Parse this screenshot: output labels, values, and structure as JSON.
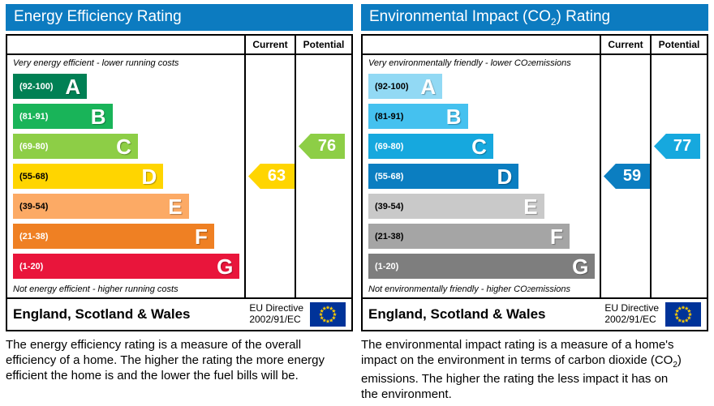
{
  "eu_flag": {
    "background": "#003399",
    "star_color": "#ffcc00"
  },
  "chart_data": [
    {
      "type": "bar",
      "title": {
        "pre": "Energy Efficiency Rating",
        "sub": "",
        "post": ""
      },
      "header_color": "#0c7bc0",
      "columns": {
        "current": "Current",
        "potential": "Potential"
      },
      "top_note": {
        "pre": "Very energy efficient - lower running costs",
        "sub": "",
        "post": ""
      },
      "bottom_note": {
        "pre": "Not energy efficient - higher running costs",
        "sub": "",
        "post": ""
      },
      "bands": [
        {
          "range": "(92-100)",
          "letter": "A",
          "color": "#008054",
          "text_color": "#ffffff",
          "width": "32%"
        },
        {
          "range": "(81-91)",
          "letter": "B",
          "color": "#19b459",
          "text_color": "#ffffff",
          "width": "43%"
        },
        {
          "range": "(69-80)",
          "letter": "C",
          "color": "#8dce46",
          "text_color": "#ffffff",
          "width": "54%"
        },
        {
          "range": "(55-68)",
          "letter": "D",
          "color": "#ffd500",
          "text_color": "#000000",
          "width": "65%"
        },
        {
          "range": "(39-54)",
          "letter": "E",
          "color": "#fcaa65",
          "text_color": "#000000",
          "width": "76%"
        },
        {
          "range": "(21-38)",
          "letter": "F",
          "color": "#ef8023",
          "text_color": "#ffffff",
          "width": "87%"
        },
        {
          "range": "(1-20)",
          "letter": "G",
          "color": "#e9153b",
          "text_color": "#ffffff",
          "width": "98%"
        }
      ],
      "current": {
        "value": "63",
        "band_index": 3,
        "color": "#ffd500"
      },
      "potential": {
        "value": "76",
        "band_index": 2,
        "color": "#8dce46"
      },
      "footer": {
        "region": "England, Scotland & Wales",
        "directive_line1": "EU Directive",
        "directive_line2": "2002/91/EC"
      },
      "description": {
        "pre": "The energy efficiency rating is a measure of the overall efficiency of a home. The higher the rating the more energy efficient the home is and the lower the fuel bills will be.",
        "sub": "",
        "post": ""
      }
    },
    {
      "type": "bar",
      "title": {
        "pre": "Environmental Impact (CO",
        "sub": "2",
        "post": ") Rating"
      },
      "header_color": "#0c7bc0",
      "columns": {
        "current": "Current",
        "potential": "Potential"
      },
      "top_note": {
        "pre": "Very environmentally friendly - lower CO",
        "sub": "2",
        "post": " emissions"
      },
      "bottom_note": {
        "pre": "Not environmentally friendly - higher CO",
        "sub": "2",
        "post": " emissions"
      },
      "bands": [
        {
          "range": "(92-100)",
          "letter": "A",
          "color": "#92d9f4",
          "text_color": "#000000",
          "width": "32%"
        },
        {
          "range": "(81-91)",
          "letter": "B",
          "color": "#45c1ef",
          "text_color": "#000000",
          "width": "43%"
        },
        {
          "range": "(69-80)",
          "letter": "C",
          "color": "#16a8de",
          "text_color": "#ffffff",
          "width": "54%"
        },
        {
          "range": "(55-68)",
          "letter": "D",
          "color": "#0b7ec1",
          "text_color": "#ffffff",
          "width": "65%"
        },
        {
          "range": "(39-54)",
          "letter": "E",
          "color": "#c9c9c9",
          "text_color": "#000000",
          "width": "76%"
        },
        {
          "range": "(21-38)",
          "letter": "F",
          "color": "#a5a5a5",
          "text_color": "#000000",
          "width": "87%"
        },
        {
          "range": "(1-20)",
          "letter": "G",
          "color": "#7e7e7e",
          "text_color": "#ffffff",
          "width": "98%"
        }
      ],
      "current": {
        "value": "59",
        "band_index": 3,
        "color": "#0b7ec1"
      },
      "potential": {
        "value": "77",
        "band_index": 2,
        "color": "#16a8de"
      },
      "footer": {
        "region": "England, Scotland & Wales",
        "directive_line1": "EU Directive",
        "directive_line2": "2002/91/EC"
      },
      "description": {
        "pre": "The environmental impact rating is a measure of a home's impact on the environment in terms of carbon dioxide (CO",
        "sub": "2",
        "post": ") emissions. The higher the rating the less impact it has on the environment."
      }
    }
  ]
}
